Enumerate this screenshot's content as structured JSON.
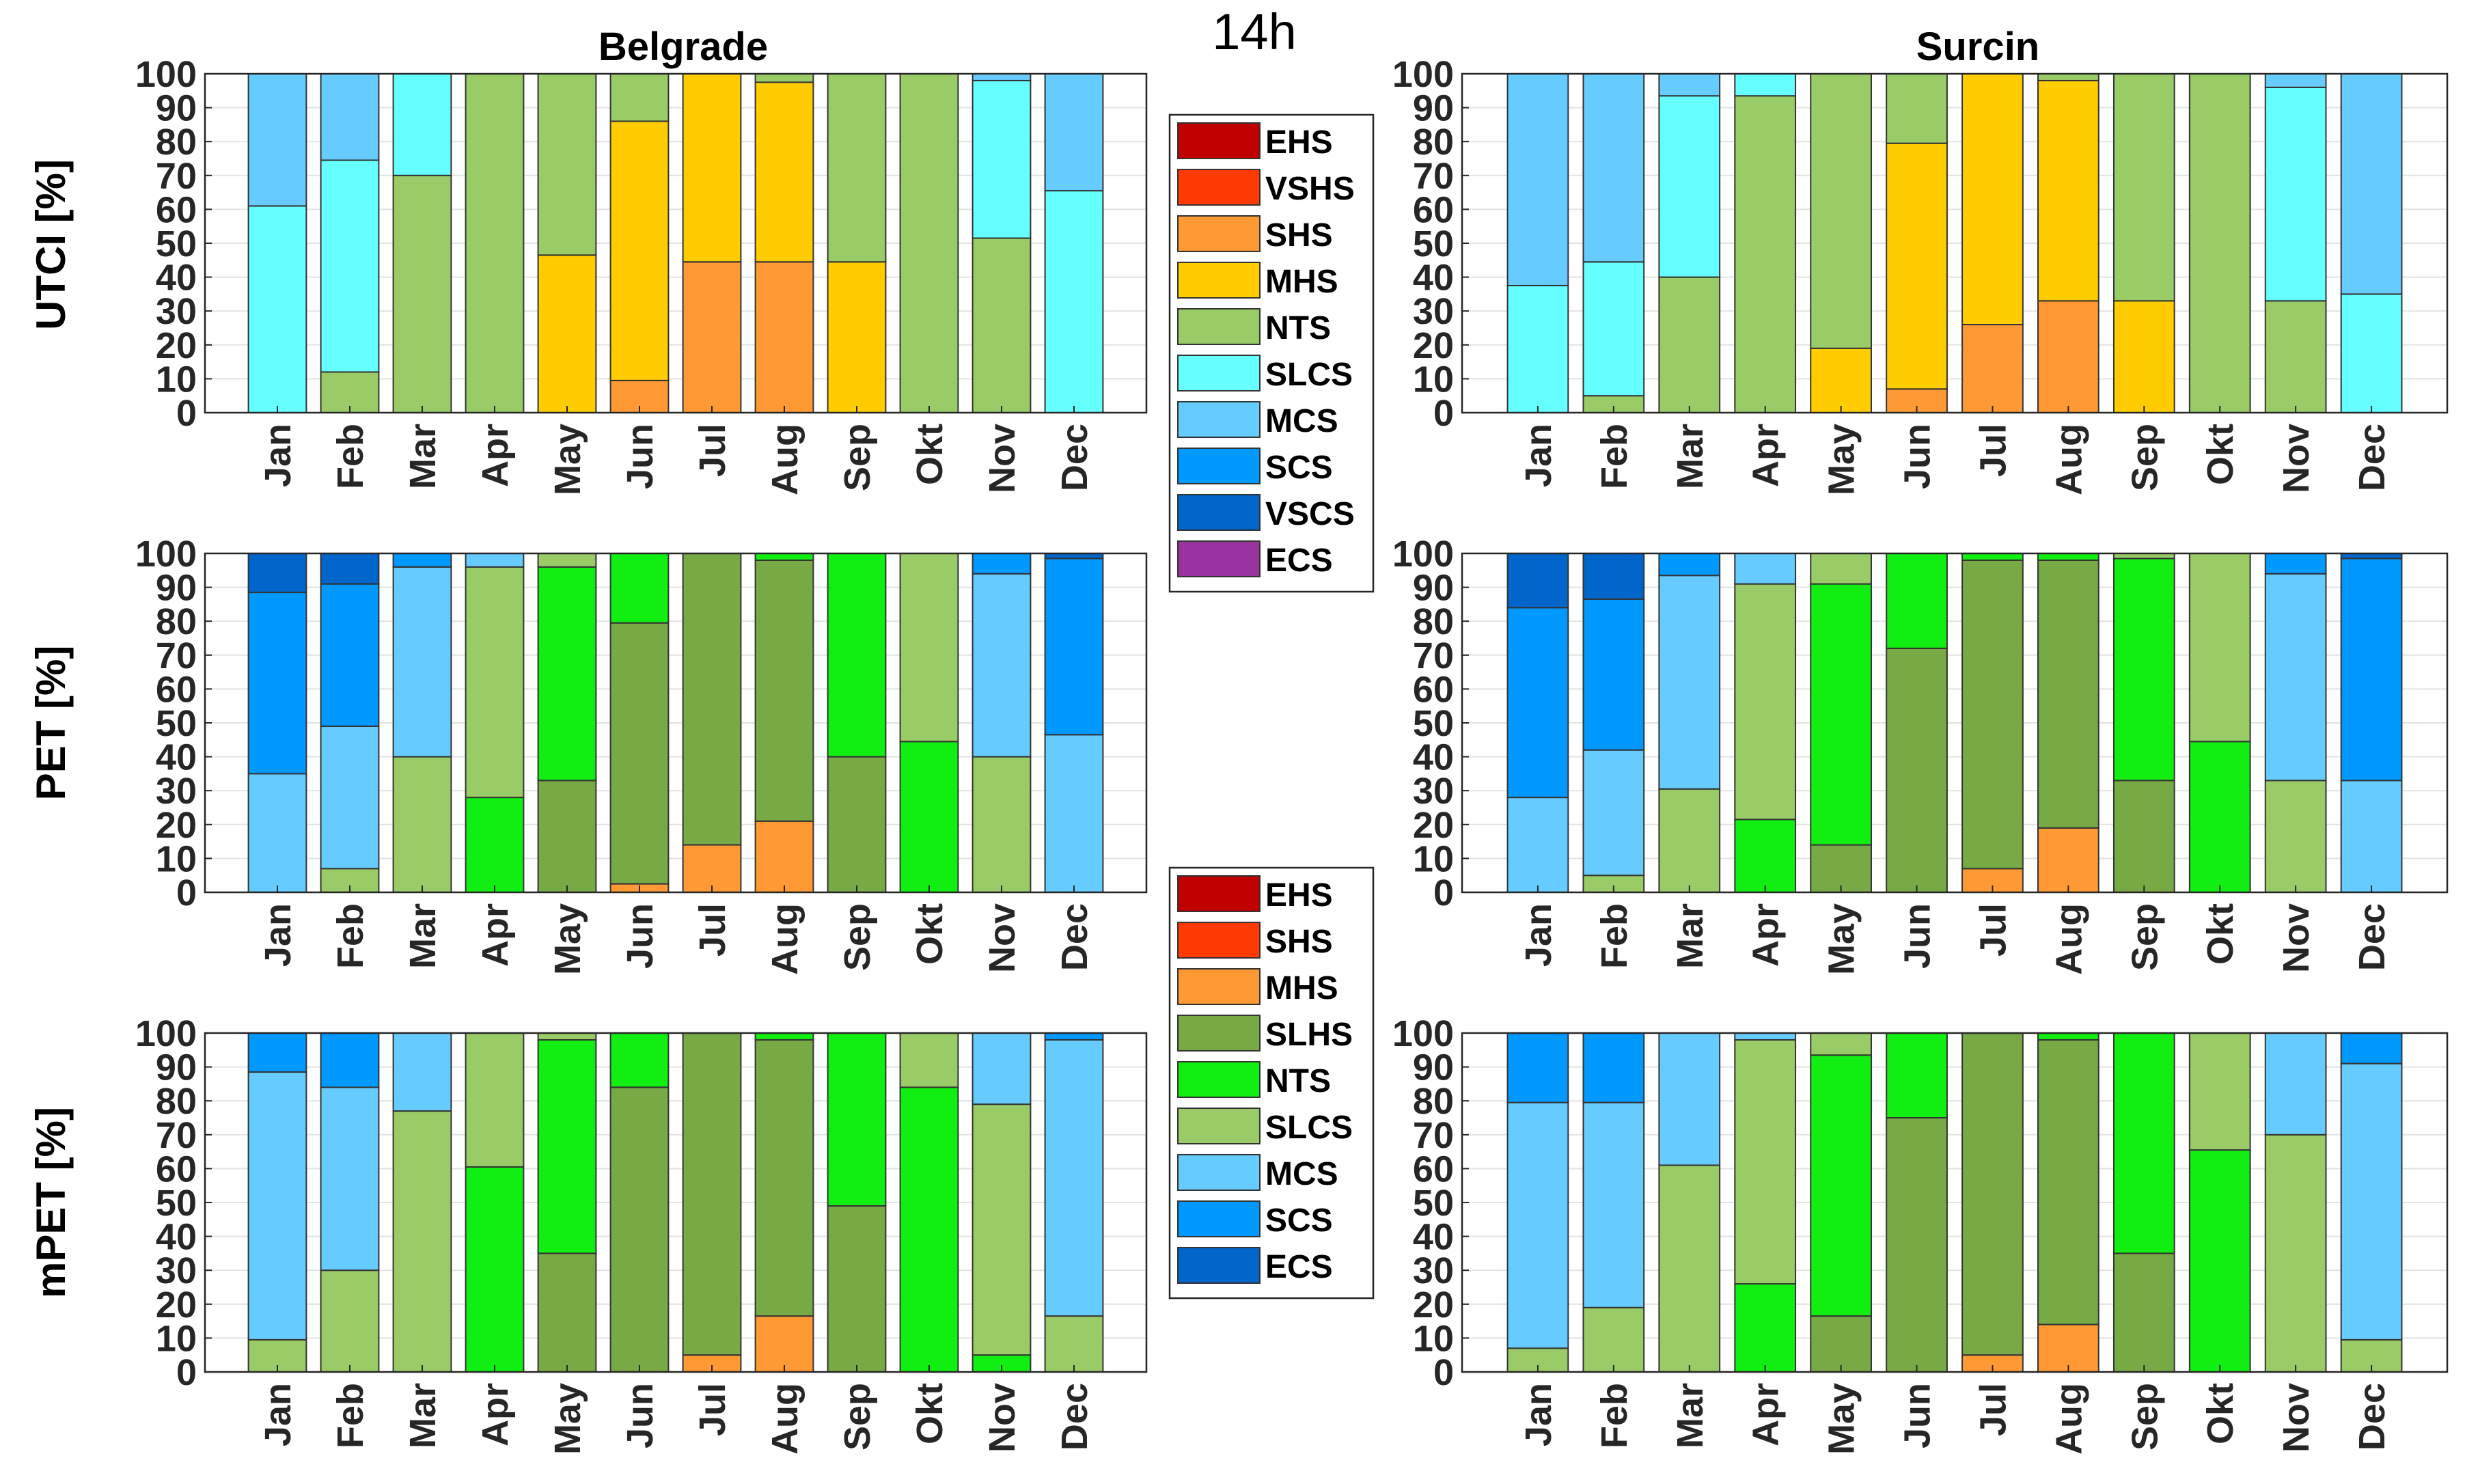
{
  "figure": {
    "title": "14h",
    "columns": [
      "Belgrade",
      "Surcin"
    ],
    "row_labels": [
      "UTCI [%]",
      "PET [%]",
      "mPET [%]"
    ]
  },
  "colors": {
    "EHS": "#C00000",
    "VSHS": "#FF3A00",
    "SHS": "#FF9933",
    "MHS": "#FFCC00",
    "NTS": "#99CC66",
    "SLCS": "#66FFFF",
    "MCS": "#66CCFF",
    "SCS": "#0099FF",
    "VSCS": "#0066CC",
    "ECS": "#9933A0",
    "PET_EHS": "#C00000",
    "PET_SHS": "#FF3A00",
    "PET_MHS": "#FF9933",
    "PET_SLHS": "#77AA44",
    "PET_NTS": "#11EE11",
    "PET_SLCS": "#99CC66",
    "PET_MCS": "#66CCFF",
    "PET_SCS": "#0099FF",
    "PET_ECS": "#0066CC"
  },
  "legends": [
    {
      "name": "utci-legend",
      "entries": [
        {
          "label": "EHS",
          "color": "#C00000"
        },
        {
          "label": "VSHS",
          "color": "#FF3A00"
        },
        {
          "label": "SHS",
          "color": "#FF9933"
        },
        {
          "label": "MHS",
          "color": "#FFCC00"
        },
        {
          "label": "NTS",
          "color": "#99CC66"
        },
        {
          "label": "SLCS",
          "color": "#66FFFF"
        },
        {
          "label": "MCS",
          "color": "#66CCFF"
        },
        {
          "label": "SCS",
          "color": "#0099FF"
        },
        {
          "label": "VSCS",
          "color": "#0066CC"
        },
        {
          "label": "ECS",
          "color": "#9933A0"
        }
      ]
    },
    {
      "name": "pet-legend",
      "entries": [
        {
          "label": "EHS",
          "color": "#C00000"
        },
        {
          "label": "SHS",
          "color": "#FF3A00"
        },
        {
          "label": "MHS",
          "color": "#FF9933"
        },
        {
          "label": "SLHS",
          "color": "#77AA44"
        },
        {
          "label": "NTS",
          "color": "#11EE11"
        },
        {
          "label": "SLCS",
          "color": "#99CC66"
        },
        {
          "label": "MCS",
          "color": "#66CCFF"
        },
        {
          "label": "SCS",
          "color": "#0099FF"
        },
        {
          "label": "ECS",
          "color": "#0066CC"
        }
      ]
    }
  ],
  "chart_data": [
    {
      "type": "bar",
      "stacked": true,
      "index": "UTCI",
      "station": "Belgrade",
      "title": "Belgrade",
      "ylabel": "UTCI [%]",
      "ylim": [
        0,
        100
      ],
      "yticks": [
        0,
        10,
        20,
        30,
        40,
        50,
        60,
        70,
        80,
        90,
        100
      ],
      "grid": "horizontal",
      "categories": [
        "Jan",
        "Feb",
        "Mar",
        "Apr",
        "May",
        "Jun",
        "Jul",
        "Aug",
        "Sep",
        "Okt",
        "Nov",
        "Dec"
      ],
      "series": [
        {
          "name": "SHS",
          "color": "#FF9933",
          "values": [
            0,
            0,
            0,
            0,
            0,
            9.5,
            44.5,
            44.5,
            0,
            0,
            0,
            0
          ]
        },
        {
          "name": "MHS",
          "color": "#FFCC00",
          "values": [
            0,
            0,
            0,
            0,
            46.5,
            76.5,
            55.5,
            53,
            44.5,
            0,
            0,
            0
          ]
        },
        {
          "name": "NTS",
          "color": "#99CC66",
          "values": [
            0,
            12,
            70,
            100,
            53.5,
            14,
            0,
            2.5,
            55.5,
            100,
            51.5,
            0
          ]
        },
        {
          "name": "SLCS",
          "color": "#66FFFF",
          "values": [
            61,
            62.5,
            30,
            0,
            0,
            0,
            0,
            0,
            0,
            0,
            46.5,
            65.5
          ]
        },
        {
          "name": "MCS",
          "color": "#66CCFF",
          "values": [
            39,
            25.5,
            0,
            0,
            0,
            0,
            0,
            0,
            0,
            0,
            2,
            34.5
          ]
        }
      ]
    },
    {
      "type": "bar",
      "stacked": true,
      "index": "UTCI",
      "station": "Surcin",
      "title": "Surcin",
      "ylabel": "",
      "ylim": [
        0,
        100
      ],
      "yticks": [
        0,
        10,
        20,
        30,
        40,
        50,
        60,
        70,
        80,
        90,
        100
      ],
      "grid": "horizontal",
      "categories": [
        "Jan",
        "Feb",
        "Mar",
        "Apr",
        "May",
        "Jun",
        "Jul",
        "Aug",
        "Sep",
        "Okt",
        "Nov",
        "Dec"
      ],
      "series": [
        {
          "name": "SHS",
          "color": "#FF9933",
          "values": [
            0,
            0,
            0,
            0,
            0,
            7,
            26,
            33,
            0,
            0,
            0,
            0
          ]
        },
        {
          "name": "MHS",
          "color": "#FFCC00",
          "values": [
            0,
            0,
            0,
            0,
            19,
            72.5,
            74,
            65,
            33,
            0,
            0,
            0
          ]
        },
        {
          "name": "NTS",
          "color": "#99CC66",
          "values": [
            0,
            5,
            40,
            93.5,
            81,
            20.5,
            0,
            2,
            67,
            100,
            33,
            0
          ]
        },
        {
          "name": "SLCS",
          "color": "#66FFFF",
          "values": [
            37.5,
            39.5,
            53.5,
            6.5,
            0,
            0,
            0,
            0,
            0,
            0,
            63,
            35
          ]
        },
        {
          "name": "MCS",
          "color": "#66CCFF",
          "values": [
            62.5,
            55.5,
            6.5,
            0,
            0,
            0,
            0,
            0,
            0,
            0,
            4,
            65
          ]
        }
      ]
    },
    {
      "type": "bar",
      "stacked": true,
      "index": "PET",
      "station": "Belgrade",
      "title": "",
      "ylabel": "PET [%]",
      "ylim": [
        0,
        100
      ],
      "yticks": [
        0,
        10,
        20,
        30,
        40,
        50,
        60,
        70,
        80,
        90,
        100
      ],
      "grid": "horizontal",
      "categories": [
        "Jan",
        "Feb",
        "Mar",
        "Apr",
        "May",
        "Jun",
        "Jul",
        "Aug",
        "Sep",
        "Okt",
        "Nov",
        "Dec"
      ],
      "series": [
        {
          "name": "MHS",
          "color": "#FF9933",
          "values": [
            0,
            0,
            0,
            0,
            0,
            2.5,
            14,
            21,
            0,
            0,
            0,
            0
          ]
        },
        {
          "name": "SLHS",
          "color": "#77AA44",
          "values": [
            0,
            0,
            0,
            0,
            33,
            77,
            86,
            77,
            40,
            0,
            0,
            0
          ]
        },
        {
          "name": "NTS",
          "color": "#11EE11",
          "values": [
            0,
            0,
            0,
            28,
            63,
            20.5,
            0,
            2,
            60,
            44.5,
            0,
            0
          ]
        },
        {
          "name": "SLCS",
          "color": "#99CC66",
          "values": [
            0,
            7,
            40,
            68,
            4,
            0,
            0,
            0,
            0,
            55.5,
            40,
            0
          ]
        },
        {
          "name": "MCS",
          "color": "#66CCFF",
          "values": [
            35,
            42,
            56,
            4,
            0,
            0,
            0,
            0,
            0,
            0,
            54,
            46.5
          ]
        },
        {
          "name": "SCS",
          "color": "#0099FF",
          "values": [
            53.5,
            42,
            4,
            0,
            0,
            0,
            0,
            0,
            0,
            0,
            6,
            52
          ]
        },
        {
          "name": "ECS",
          "color": "#0066CC",
          "values": [
            11.5,
            9,
            0,
            0,
            0,
            0,
            0,
            0,
            0,
            0,
            0,
            1.5
          ]
        }
      ]
    },
    {
      "type": "bar",
      "stacked": true,
      "index": "PET",
      "station": "Surcin",
      "title": "",
      "ylabel": "",
      "ylim": [
        0,
        100
      ],
      "yticks": [
        0,
        10,
        20,
        30,
        40,
        50,
        60,
        70,
        80,
        90,
        100
      ],
      "grid": "horizontal",
      "categories": [
        "Jan",
        "Feb",
        "Mar",
        "Apr",
        "May",
        "Jun",
        "Jul",
        "Aug",
        "Sep",
        "Okt",
        "Nov",
        "Dec"
      ],
      "series": [
        {
          "name": "MHS",
          "color": "#FF9933",
          "values": [
            0,
            0,
            0,
            0,
            0,
            0,
            7,
            19,
            0,
            0,
            0,
            0
          ]
        },
        {
          "name": "SLHS",
          "color": "#77AA44",
          "values": [
            0,
            0,
            0,
            0,
            14,
            72,
            91,
            79,
            33,
            0,
            0,
            0
          ]
        },
        {
          "name": "NTS",
          "color": "#11EE11",
          "values": [
            0,
            0,
            0,
            21.5,
            77,
            28,
            2,
            2,
            65.5,
            44.5,
            0,
            0
          ]
        },
        {
          "name": "SLCS",
          "color": "#99CC66",
          "values": [
            0,
            5,
            30.5,
            69.5,
            9,
            0,
            0,
            0,
            1.5,
            55.5,
            33,
            0
          ]
        },
        {
          "name": "MCS",
          "color": "#66CCFF",
          "values": [
            28,
            37,
            63,
            9,
            0,
            0,
            0,
            0,
            0,
            0,
            61,
            33
          ]
        },
        {
          "name": "SCS",
          "color": "#0099FF",
          "values": [
            56,
            44.5,
            6.5,
            0,
            0,
            0,
            0,
            0,
            0,
            0,
            6,
            65.5
          ]
        },
        {
          "name": "ECS",
          "color": "#0066CC",
          "values": [
            16,
            13.5,
            0,
            0,
            0,
            0,
            0,
            0,
            0,
            0,
            0,
            1.5
          ]
        }
      ]
    },
    {
      "type": "bar",
      "stacked": true,
      "index": "mPET",
      "station": "Belgrade",
      "title": "",
      "ylabel": "mPET [%]",
      "ylim": [
        0,
        100
      ],
      "yticks": [
        0,
        10,
        20,
        30,
        40,
        50,
        60,
        70,
        80,
        90,
        100
      ],
      "grid": "horizontal",
      "categories": [
        "Jan",
        "Feb",
        "Mar",
        "Apr",
        "May",
        "Jun",
        "Jul",
        "Aug",
        "Sep",
        "Okt",
        "Nov",
        "Dec"
      ],
      "series": [
        {
          "name": "MHS",
          "color": "#FF9933",
          "values": [
            0,
            0,
            0,
            0,
            0,
            0,
            5,
            16.5,
            0,
            0,
            0,
            0
          ]
        },
        {
          "name": "SLHS",
          "color": "#77AA44",
          "values": [
            0,
            0,
            0,
            0,
            35,
            84,
            95,
            81.5,
            49,
            0,
            0,
            0
          ]
        },
        {
          "name": "NTS",
          "color": "#11EE11",
          "values": [
            0,
            0,
            0,
            60.5,
            63,
            16,
            0,
            2,
            51,
            84,
            5,
            0
          ]
        },
        {
          "name": "SLCS",
          "color": "#99CC66",
          "values": [
            9.5,
            30,
            77,
            39.5,
            2,
            0,
            0,
            0,
            0,
            16,
            74,
            16.5
          ]
        },
        {
          "name": "MCS",
          "color": "#66CCFF",
          "values": [
            79,
            54,
            23,
            0,
            0,
            0,
            0,
            0,
            0,
            0,
            21,
            81.5
          ]
        },
        {
          "name": "SCS",
          "color": "#0099FF",
          "values": [
            11.5,
            16,
            0,
            0,
            0,
            0,
            0,
            0,
            0,
            0,
            0,
            2
          ]
        }
      ]
    },
    {
      "type": "bar",
      "stacked": true,
      "index": "mPET",
      "station": "Surcin",
      "title": "",
      "ylabel": "",
      "ylim": [
        0,
        100
      ],
      "yticks": [
        0,
        10,
        20,
        30,
        40,
        50,
        60,
        70,
        80,
        90,
        100
      ],
      "grid": "horizontal",
      "categories": [
        "Jan",
        "Feb",
        "Mar",
        "Apr",
        "May",
        "Jun",
        "Jul",
        "Aug",
        "Sep",
        "Okt",
        "Nov",
        "Dec"
      ],
      "series": [
        {
          "name": "MHS",
          "color": "#FF9933",
          "values": [
            0,
            0,
            0,
            0,
            0,
            0,
            5,
            14,
            0,
            0,
            0,
            0
          ]
        },
        {
          "name": "SLHS",
          "color": "#77AA44",
          "values": [
            0,
            0,
            0,
            0,
            16.5,
            75,
            95,
            84,
            35,
            0,
            0,
            0
          ]
        },
        {
          "name": "NTS",
          "color": "#11EE11",
          "values": [
            0,
            0,
            0,
            26,
            77,
            25,
            0,
            2,
            65,
            65.5,
            0,
            0
          ]
        },
        {
          "name": "SLCS",
          "color": "#99CC66",
          "values": [
            7,
            19,
            61,
            72,
            6.5,
            0,
            0,
            0,
            0,
            34.5,
            70,
            9.5
          ]
        },
        {
          "name": "MCS",
          "color": "#66CCFF",
          "values": [
            72.5,
            60.5,
            39,
            2,
            0,
            0,
            0,
            0,
            0,
            0,
            30,
            81.5
          ]
        },
        {
          "name": "SCS",
          "color": "#0099FF",
          "values": [
            20.5,
            20.5,
            0,
            0,
            0,
            0,
            0,
            0,
            0,
            0,
            0,
            9
          ]
        }
      ]
    }
  ]
}
